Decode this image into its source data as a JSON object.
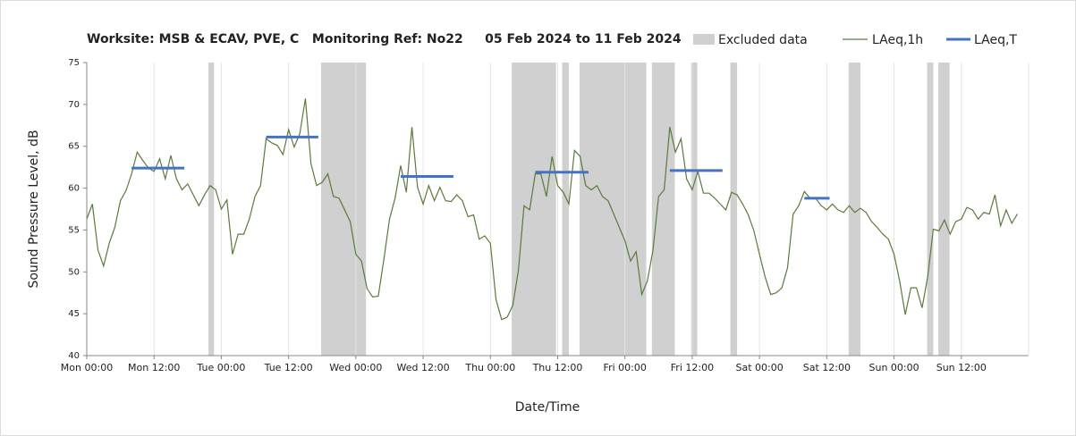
{
  "chart_data": {
    "type": "line",
    "title": "Worksite: MSB & ECAV, PVE, C   Monitoring Ref: No22     05 Feb 2024 to 11 Feb 2024",
    "xlabel": "Date/Time",
    "ylabel": "Sound Pressure Level, dB",
    "xlim": [
      0,
      168
    ],
    "ylim": [
      40,
      75
    ],
    "xticks": [
      {
        "value": 0,
        "label": "Mon 00:00"
      },
      {
        "value": 12,
        "label": "Mon 12:00"
      },
      {
        "value": 24,
        "label": "Tue 00:00"
      },
      {
        "value": 36,
        "label": "Tue 12:00"
      },
      {
        "value": 48,
        "label": "Wed 00:00"
      },
      {
        "value": 60,
        "label": "Wed 12:00"
      },
      {
        "value": 72,
        "label": "Thu 00:00"
      },
      {
        "value": 84,
        "label": "Thu 12:00"
      },
      {
        "value": 96,
        "label": "Fri 00:00"
      },
      {
        "value": 108,
        "label": "Fri 12:00"
      },
      {
        "value": 120,
        "label": "Sat 00:00"
      },
      {
        "value": 132,
        "label": "Sat 12:00"
      },
      {
        "value": 144,
        "label": "Sun 00:00"
      },
      {
        "value": 156,
        "label": "Sun 12:00"
      }
    ],
    "yticks": [
      40,
      45,
      50,
      55,
      60,
      65,
      70,
      75
    ],
    "grid": true,
    "excluded": {
      "name": "Excluded data",
      "color": "#d0d0d0",
      "start": [
        21.7,
        41.8,
        75.8,
        84.8,
        87.9,
        100.8,
        107.8,
        114.8,
        135.9,
        149.9,
        151.9
      ],
      "end": [
        22.7,
        49.8,
        83.7,
        86,
        99.8,
        104.9,
        108.9,
        116,
        138,
        151,
        153.9
      ]
    },
    "series": [
      {
        "name": "LAeq,1h",
        "color": "#5b7a3c",
        "x": [
          0,
          1,
          2,
          3,
          4,
          5,
          6,
          7,
          8,
          9,
          10,
          11,
          12,
          13,
          14,
          15,
          16,
          17,
          18,
          19,
          20,
          21,
          22,
          23,
          24,
          25,
          26,
          27,
          28,
          29,
          30,
          31,
          32,
          33,
          34,
          35,
          36,
          37,
          38,
          39,
          40,
          41,
          42,
          43,
          44,
          45,
          46,
          47,
          48,
          49,
          50,
          51,
          52,
          53,
          54,
          55,
          56,
          57,
          58,
          59,
          60,
          61,
          62,
          63,
          64,
          65,
          66,
          67,
          68,
          69,
          70,
          71,
          72,
          73,
          74,
          75,
          76,
          77,
          78,
          79,
          80,
          81,
          82,
          83,
          84,
          85,
          86,
          87,
          88,
          89,
          90,
          91,
          92,
          93,
          94,
          95,
          96,
          97,
          98,
          99,
          100,
          101,
          102,
          103,
          104,
          105,
          106,
          107,
          108,
          109,
          110,
          111,
          112,
          113,
          114,
          115,
          116,
          117,
          118,
          119,
          120,
          121,
          122,
          123,
          124,
          125,
          126,
          127,
          128,
          129,
          130,
          131,
          132,
          133,
          134,
          135,
          136,
          137,
          138,
          139,
          140,
          141,
          142,
          143,
          144,
          145,
          146,
          147,
          148,
          149,
          150,
          151,
          152,
          153,
          154,
          155,
          156,
          157,
          158,
          159,
          160,
          161,
          162,
          163,
          164,
          165,
          166
        ],
        "values": [
          56.3,
          58.1,
          52.6,
          50.7,
          53.4,
          55.3,
          58.5,
          59.7,
          61.7,
          64.3,
          63.3,
          62.4,
          62.0,
          63.5,
          61.1,
          63.9,
          61.1,
          59.8,
          60.5,
          59.2,
          57.9,
          59.2,
          60.3,
          59.8,
          57.5,
          58.6,
          52.1,
          54.5,
          54.5,
          56.3,
          59.0,
          60.3,
          65.9,
          65.4,
          65.1,
          64.0,
          67.0,
          64.9,
          66.5,
          70.7,
          62.9,
          60.3,
          60.7,
          61.7,
          59.0,
          58.8,
          57.4,
          56.0,
          52.1,
          51.3,
          48.0,
          47.0,
          47.1,
          51.5,
          56.3,
          58.8,
          62.7,
          59.5,
          67.3,
          60.1,
          58.1,
          60.3,
          58.5,
          60.1,
          58.5,
          58.4,
          59.2,
          58.5,
          56.6,
          56.8,
          53.9,
          54.3,
          53.4,
          46.7,
          44.3,
          44.6,
          46.0,
          50.2,
          57.9,
          57.4,
          61.7,
          61.7,
          59.0,
          63.8,
          60.3,
          59.5,
          58.1,
          64.5,
          63.8,
          60.3,
          59.8,
          60.3,
          59.0,
          58.5,
          56.9,
          55.3,
          53.7,
          51.3,
          52.4,
          47.3,
          48.9,
          52.6,
          59.0,
          59.8,
          67.3,
          64.3,
          65.9,
          61.1,
          59.8,
          62.0,
          59.4,
          59.4,
          58.8,
          58.1,
          57.4,
          59.5,
          59.2,
          58.1,
          56.8,
          54.9,
          52.1,
          49.4,
          47.3,
          47.5,
          48.1,
          50.5,
          56.9,
          57.9,
          59.6,
          58.8,
          58.8,
          57.9,
          57.4,
          58.1,
          57.4,
          57.1,
          57.9,
          57.1,
          57.6,
          57.1,
          56.0,
          55.3,
          54.5,
          53.9,
          52.1,
          48.9,
          44.9,
          48.1,
          48.1,
          45.7,
          49.4,
          55.1,
          54.9,
          56.2,
          54.5,
          56.0,
          56.3,
          57.7,
          57.4,
          56.3,
          57.1,
          56.9,
          59.2,
          55.5,
          57.4,
          55.8,
          56.9
        ]
      }
    ],
    "levels": {
      "name": "LAeq,T",
      "color": "#4472c4",
      "start": [
        8,
        32,
        56,
        80,
        104,
        128
      ],
      "end": [
        17.4,
        41.3,
        65.4,
        89.5,
        113.4,
        132.5
      ],
      "values": [
        62.4,
        66.1,
        61.4,
        61.9,
        62.1,
        58.8
      ]
    }
  }
}
